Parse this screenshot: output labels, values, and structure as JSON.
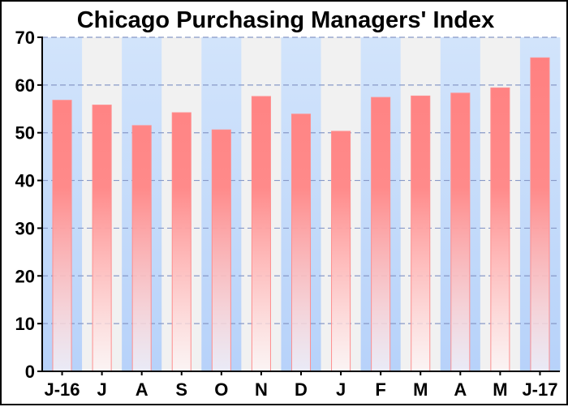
{
  "chart_data": {
    "type": "bar",
    "title": "Chicago Purchasing Managers' Index",
    "xlabel": "",
    "ylabel": "",
    "categories": [
      "J-16",
      "J",
      "A",
      "S",
      "O",
      "N",
      "D",
      "J",
      "F",
      "M",
      "A",
      "M",
      "J-17"
    ],
    "values": [
      56.8,
      55.8,
      51.5,
      54.2,
      50.6,
      57.6,
      53.9,
      50.3,
      57.4,
      57.7,
      58.3,
      59.4,
      65.7
    ],
    "ylim": [
      0,
      70
    ],
    "yticks": [
      0,
      10,
      20,
      30,
      40,
      50,
      60,
      70
    ],
    "grid": true,
    "colors": {
      "bar_top": "#ff8080",
      "bar_bottom": "#fff4f4",
      "bar_edge": "#ff8f8f",
      "band_blue": "#c6dcfb",
      "band_gray": "#f0f0f0",
      "grid": "#8899c7"
    }
  }
}
